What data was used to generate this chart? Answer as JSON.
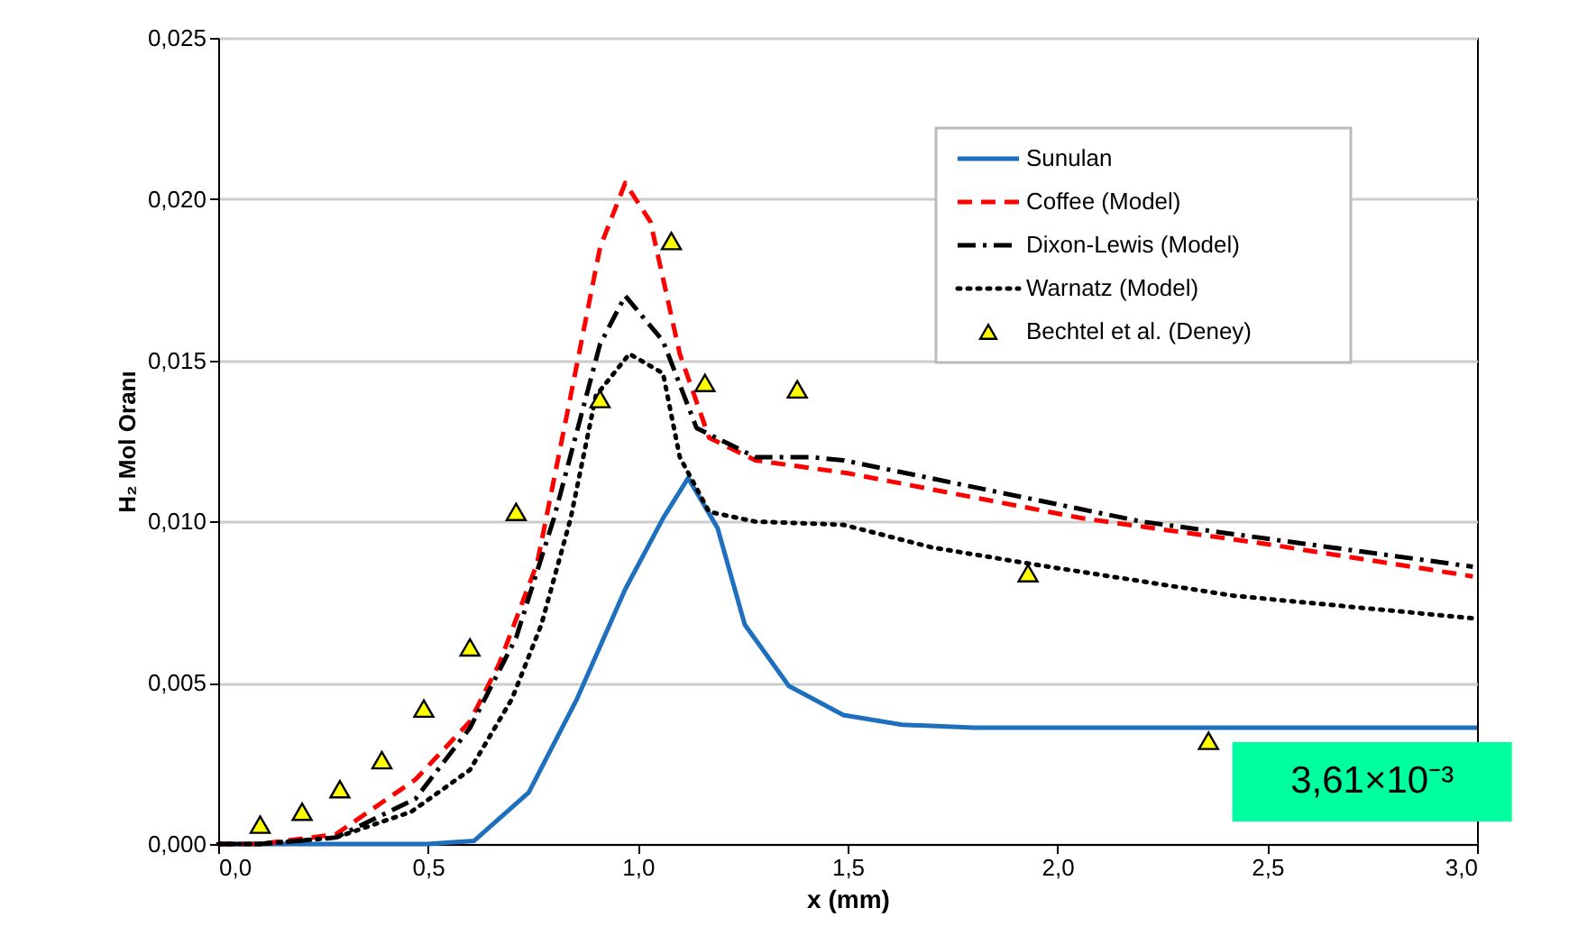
{
  "chart_data": {
    "type": "line",
    "xlabel": "x  (mm)",
    "ylabel": "H₂ Mol Oranı",
    "xlim": [
      0,
      3
    ],
    "ylim": [
      0,
      0.025
    ],
    "xticks": [
      {
        "value": 0,
        "label": "0,0"
      },
      {
        "value": 0.5,
        "label": "0,5"
      },
      {
        "value": 1,
        "label": "1,0"
      },
      {
        "value": 1.5,
        "label": "1,5"
      },
      {
        "value": 2,
        "label": "2,0"
      },
      {
        "value": 2.5,
        "label": "2,5"
      },
      {
        "value": 3,
        "label": "3,0"
      }
    ],
    "yticks": [
      {
        "value": 0,
        "label": "0,000"
      },
      {
        "value": 0.005,
        "label": "0,005"
      },
      {
        "value": 0.01,
        "label": "0,010"
      },
      {
        "value": 0.015,
        "label": "0,015"
      },
      {
        "value": 0.02,
        "label": "0,020"
      },
      {
        "value": 0.025,
        "label": "0,025"
      }
    ],
    "grid": "y",
    "legend": "top right",
    "annotations": [
      {
        "text": "3,61×10⁻³",
        "x": 2.75,
        "y": 0.00361
      }
    ],
    "series": [
      {
        "name": "Sunulan",
        "color": "#1f6fbf",
        "line_style": "solid",
        "x": [
          0,
          0.5,
          0.61,
          0.74,
          0.855,
          0.97,
          1.06,
          1.12,
          1.19,
          1.255,
          1.36,
          1.49,
          1.63,
          1.8,
          2.0,
          2.5,
          3.0
        ],
        "values": [
          0,
          0,
          0.0001,
          0.0016,
          0.0045,
          0.0079,
          0.0101,
          0.01135,
          0.0098,
          0.0068,
          0.0049,
          0.004,
          0.0037,
          0.00361,
          0.00361,
          0.00361,
          0.00361
        ]
      },
      {
        "name": "Coffee (Model)",
        "color": "#ff0000",
        "line_style": "dashed",
        "x": [
          0,
          0.1,
          0.28,
          0.47,
          0.6,
          0.67,
          0.76,
          0.84,
          0.91,
          0.97,
          1.03,
          1.1,
          1.17,
          1.28,
          1.5,
          2.06,
          2.5,
          2.99
        ],
        "values": [
          0,
          0,
          0.0003,
          0.002,
          0.0038,
          0.0056,
          0.0087,
          0.0139,
          0.0185,
          0.0205,
          0.0193,
          0.0152,
          0.0126,
          0.0119,
          0.0115,
          0.0101,
          0.0093,
          0.0083
        ]
      },
      {
        "name": "Dixon-Lewis (Model)",
        "color": "#000000",
        "line_style": "dashdot",
        "x": [
          0,
          0.1,
          0.28,
          0.47,
          0.6,
          0.71,
          0.8,
          0.91,
          0.97,
          1.06,
          1.14,
          1.28,
          1.41,
          1.49,
          2.2,
          2.99
        ],
        "values": [
          0,
          0,
          0.0002,
          0.0014,
          0.0036,
          0.0064,
          0.0101,
          0.0155,
          0.017,
          0.0156,
          0.0129,
          0.012,
          0.012,
          0.0119,
          0.01,
          0.0086
        ]
      },
      {
        "name": "Warnatz (Model)",
        "color": "#000000",
        "line_style": "dotted",
        "x": [
          0,
          0.1,
          0.28,
          0.46,
          0.6,
          0.7,
          0.77,
          0.84,
          0.9,
          0.98,
          1.06,
          1.1,
          1.17,
          1.28,
          1.49,
          1.7,
          1.93,
          2.42,
          2.99
        ],
        "values": [
          0,
          0,
          0.0002,
          0.001,
          0.0023,
          0.0045,
          0.0068,
          0.0101,
          0.0139,
          0.0152,
          0.0146,
          0.012,
          0.0103,
          0.01,
          0.0099,
          0.0092,
          0.0087,
          0.0077,
          0.007
        ]
      },
      {
        "name": "Bechtel et al. (Deney)",
        "type": "scatter",
        "marker": "triangle",
        "color": "#ffff00",
        "x": [
          0.1,
          0.2,
          0.29,
          0.39,
          0.49,
          0.6,
          0.71,
          0.91,
          1.08,
          1.16,
          1.38,
          1.93,
          2.36
        ],
        "values": [
          0.0006,
          0.001,
          0.0017,
          0.0026,
          0.0042,
          0.0061,
          0.0103,
          0.0138,
          0.0187,
          0.0143,
          0.0141,
          0.0084,
          0.0032
        ]
      }
    ]
  }
}
